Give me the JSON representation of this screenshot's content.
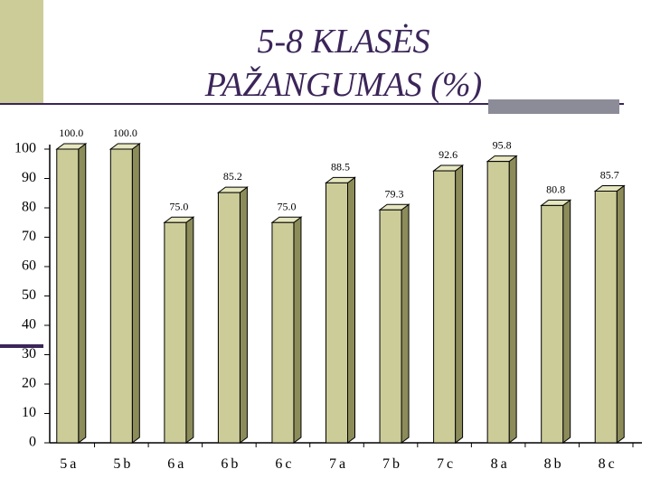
{
  "chart_data": {
    "type": "bar3d",
    "title": [
      "5-8 KLASĖS",
      "PAŽANGUMAS (%)"
    ],
    "categories": [
      "5a",
      "5b",
      "6a",
      "6b",
      "6c",
      "7a",
      "7b",
      "7c",
      "8a",
      "8b",
      "8c"
    ],
    "values": [
      100,
      100,
      75,
      85.2,
      75,
      88.5,
      79.3,
      92.6,
      95.8,
      80.8,
      85.7
    ],
    "value_labels": [
      "100.0",
      "100.0",
      "75.0",
      "85.2",
      "75.0",
      "88.5",
      "79.3",
      "92.6",
      "95.8",
      "80.8",
      "85.7"
    ],
    "color": "#cccc99",
    "ylim": [
      0,
      100
    ],
    "yticks": [
      0,
      10,
      20,
      30,
      40,
      50,
      60,
      70,
      80,
      90,
      100
    ]
  }
}
